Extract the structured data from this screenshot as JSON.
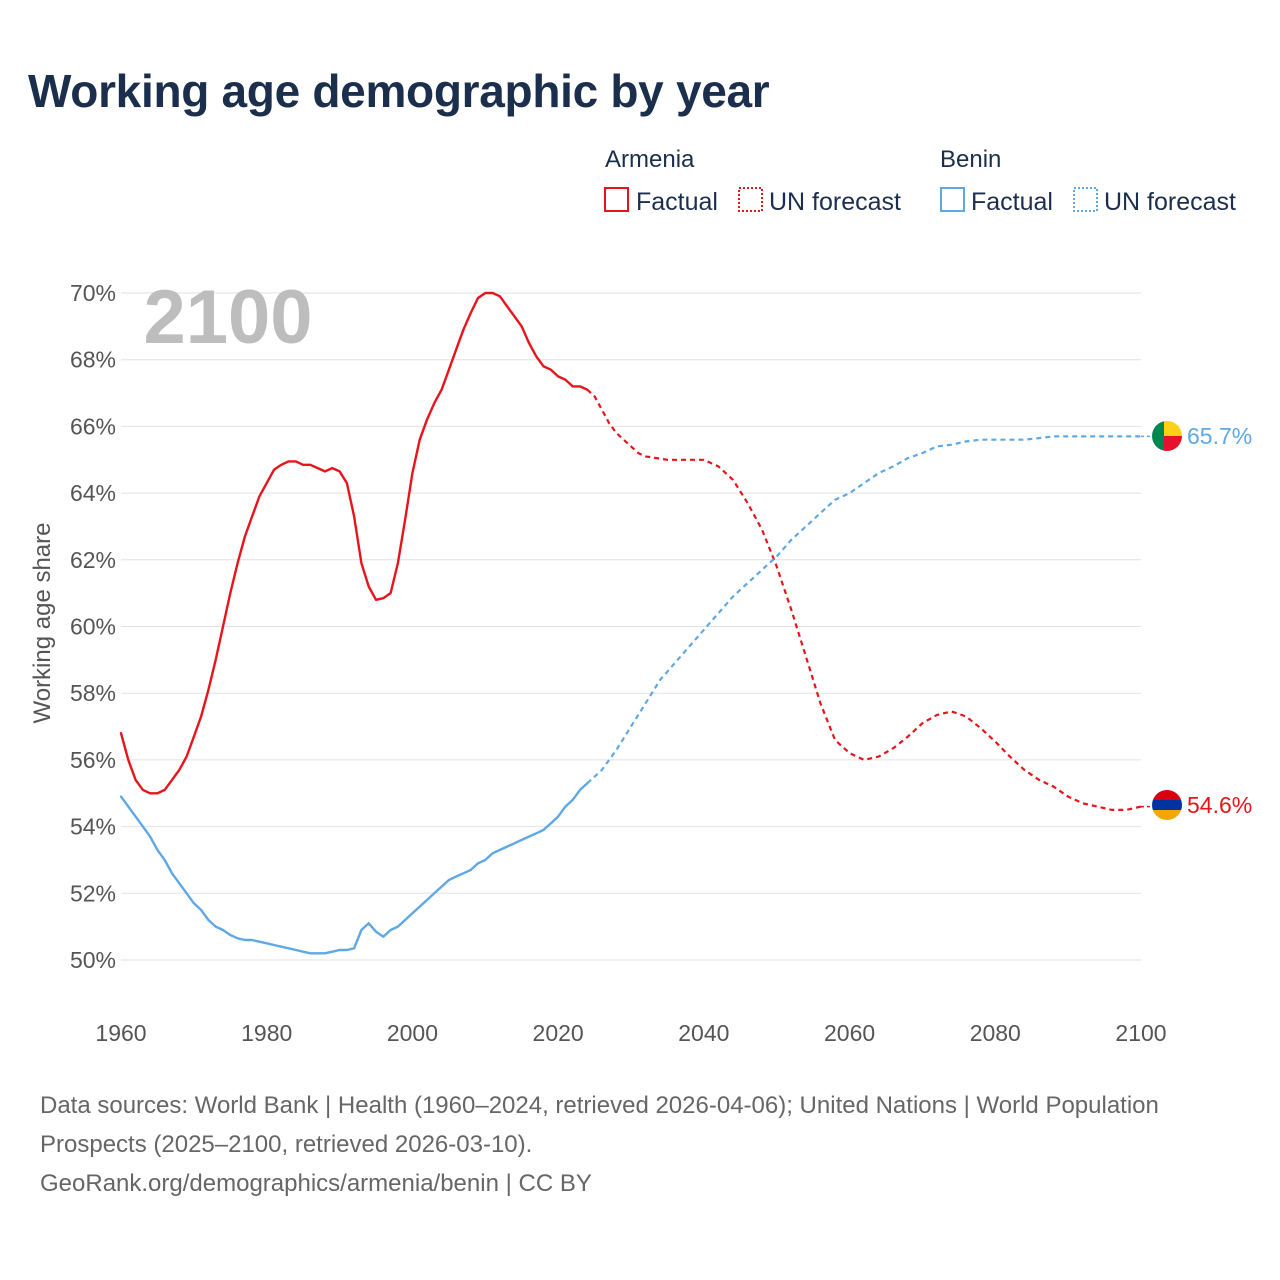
{
  "title": "Working age demographic by year",
  "legend": {
    "groups": [
      {
        "country": "Armenia",
        "color": "#e8141b",
        "factual_label": "Factual",
        "forecast_label": "UN forecast"
      },
      {
        "country": "Benin",
        "color": "#5fa8e6",
        "factual_label": "Factual",
        "forecast_label": "UN forecast"
      }
    ]
  },
  "current_year_label": "2100",
  "footer": {
    "sources": "Data sources: World Bank | Health (1960–2024, retrieved 2026-04-06); United Nations | World Population Prospects (2025–2100, retrieved 2026-03-10).",
    "credit": "GeoRank.org/demographics/armenia/benin | CC BY"
  },
  "chart_data": {
    "type": "line",
    "title": "Working age demographic by year",
    "xlabel": "",
    "ylabel": "Working age share",
    "xlim": [
      1960,
      2100
    ],
    "ylim": [
      49,
      71
    ],
    "x_ticks": [
      1960,
      1980,
      2000,
      2020,
      2040,
      2060,
      2080,
      2100
    ],
    "y_ticks": [
      50,
      52,
      54,
      56,
      58,
      60,
      62,
      64,
      66,
      68,
      70
    ],
    "y_tick_labels": [
      "50%",
      "52%",
      "54%",
      "56%",
      "58%",
      "60%",
      "62%",
      "64%",
      "66%",
      "68%",
      "70%"
    ],
    "grid": true,
    "series": [
      {
        "name": "Armenia",
        "color": "#e8141b",
        "end_label": "54.6%",
        "factual": [
          [
            1960,
            56.8
          ],
          [
            1961,
            56.0
          ],
          [
            1962,
            55.4
          ],
          [
            1963,
            55.1
          ],
          [
            1964,
            55.0
          ],
          [
            1965,
            55.0
          ],
          [
            1966,
            55.1
          ],
          [
            1967,
            55.4
          ],
          [
            1968,
            55.7
          ],
          [
            1969,
            56.1
          ],
          [
            1970,
            56.7
          ],
          [
            1971,
            57.3
          ],
          [
            1972,
            58.1
          ],
          [
            1973,
            59.0
          ],
          [
            1974,
            60.0
          ],
          [
            1975,
            61.0
          ],
          [
            1976,
            61.9
          ],
          [
            1977,
            62.7
          ],
          [
            1978,
            63.3
          ],
          [
            1979,
            63.9
          ],
          [
            1980,
            64.3
          ],
          [
            1981,
            64.7
          ],
          [
            1982,
            64.85
          ],
          [
            1983,
            64.95
          ],
          [
            1984,
            64.95
          ],
          [
            1985,
            64.85
          ],
          [
            1986,
            64.85
          ],
          [
            1987,
            64.75
          ],
          [
            1988,
            64.65
          ],
          [
            1989,
            64.75
          ],
          [
            1990,
            64.65
          ],
          [
            1991,
            64.3
          ],
          [
            1992,
            63.3
          ],
          [
            1993,
            61.9
          ],
          [
            1994,
            61.2
          ],
          [
            1995,
            60.8
          ],
          [
            1996,
            60.85
          ],
          [
            1997,
            61.0
          ],
          [
            1998,
            61.9
          ],
          [
            1999,
            63.2
          ],
          [
            2000,
            64.6
          ],
          [
            2001,
            65.6
          ],
          [
            2002,
            66.2
          ],
          [
            2003,
            66.7
          ],
          [
            2004,
            67.1
          ],
          [
            2005,
            67.7
          ],
          [
            2006,
            68.3
          ],
          [
            2007,
            68.9
          ],
          [
            2008,
            69.4
          ],
          [
            2009,
            69.85
          ],
          [
            2010,
            70.0
          ],
          [
            2011,
            70.0
          ],
          [
            2012,
            69.9
          ],
          [
            2013,
            69.6
          ],
          [
            2014,
            69.3
          ],
          [
            2015,
            69.0
          ],
          [
            2016,
            68.5
          ],
          [
            2017,
            68.1
          ],
          [
            2018,
            67.8
          ],
          [
            2019,
            67.7
          ],
          [
            2020,
            67.5
          ],
          [
            2021,
            67.4
          ],
          [
            2022,
            67.2
          ],
          [
            2023,
            67.2
          ],
          [
            2024,
            67.1
          ]
        ],
        "forecast": [
          [
            2024,
            67.1
          ],
          [
            2025,
            66.9
          ],
          [
            2026,
            66.5
          ],
          [
            2027,
            66.1
          ],
          [
            2028,
            65.8
          ],
          [
            2029,
            65.6
          ],
          [
            2030,
            65.4
          ],
          [
            2031,
            65.2
          ],
          [
            2032,
            65.1
          ],
          [
            2035,
            65.0
          ],
          [
            2038,
            65.0
          ],
          [
            2040,
            65.0
          ],
          [
            2042,
            64.8
          ],
          [
            2044,
            64.4
          ],
          [
            2046,
            63.7
          ],
          [
            2048,
            62.9
          ],
          [
            2050,
            61.8
          ],
          [
            2052,
            60.5
          ],
          [
            2054,
            59.1
          ],
          [
            2056,
            57.7
          ],
          [
            2058,
            56.6
          ],
          [
            2060,
            56.2
          ],
          [
            2062,
            56.0
          ],
          [
            2064,
            56.1
          ],
          [
            2066,
            56.35
          ],
          [
            2068,
            56.7
          ],
          [
            2070,
            57.1
          ],
          [
            2072,
            57.35
          ],
          [
            2074,
            57.45
          ],
          [
            2076,
            57.3
          ],
          [
            2078,
            56.95
          ],
          [
            2080,
            56.55
          ],
          [
            2082,
            56.1
          ],
          [
            2084,
            55.7
          ],
          [
            2086,
            55.4
          ],
          [
            2088,
            55.2
          ],
          [
            2090,
            54.9
          ],
          [
            2092,
            54.7
          ],
          [
            2094,
            54.6
          ],
          [
            2096,
            54.5
          ],
          [
            2098,
            54.5
          ],
          [
            2100,
            54.6
          ]
        ]
      },
      {
        "name": "Benin",
        "color": "#5fa8e6",
        "end_label": "65.7%",
        "factual": [
          [
            1960,
            54.9
          ],
          [
            1961,
            54.6
          ],
          [
            1962,
            54.3
          ],
          [
            1963,
            54.0
          ],
          [
            1964,
            53.7
          ],
          [
            1965,
            53.3
          ],
          [
            1966,
            53.0
          ],
          [
            1967,
            52.6
          ],
          [
            1968,
            52.3
          ],
          [
            1969,
            52.0
          ],
          [
            1970,
            51.7
          ],
          [
            1971,
            51.5
          ],
          [
            1972,
            51.2
          ],
          [
            1973,
            51.0
          ],
          [
            1974,
            50.9
          ],
          [
            1975,
            50.75
          ],
          [
            1976,
            50.65
          ],
          [
            1977,
            50.6
          ],
          [
            1978,
            50.6
          ],
          [
            1979,
            50.55
          ],
          [
            1980,
            50.5
          ],
          [
            1981,
            50.45
          ],
          [
            1982,
            50.4
          ],
          [
            1983,
            50.35
          ],
          [
            1984,
            50.3
          ],
          [
            1985,
            50.25
          ],
          [
            1986,
            50.2
          ],
          [
            1987,
            50.2
          ],
          [
            1988,
            50.2
          ],
          [
            1989,
            50.25
          ],
          [
            1990,
            50.3
          ],
          [
            1991,
            50.3
          ],
          [
            1992,
            50.35
          ],
          [
            1993,
            50.9
          ],
          [
            1994,
            51.1
          ],
          [
            1995,
            50.85
          ],
          [
            1996,
            50.7
          ],
          [
            1997,
            50.9
          ],
          [
            1998,
            51.0
          ],
          [
            1999,
            51.2
          ],
          [
            2000,
            51.4
          ],
          [
            2001,
            51.6
          ],
          [
            2002,
            51.8
          ],
          [
            2003,
            52.0
          ],
          [
            2004,
            52.2
          ],
          [
            2005,
            52.4
          ],
          [
            2006,
            52.5
          ],
          [
            2007,
            52.6
          ],
          [
            2008,
            52.7
          ],
          [
            2009,
            52.9
          ],
          [
            2010,
            53.0
          ],
          [
            2011,
            53.2
          ],
          [
            2012,
            53.3
          ],
          [
            2013,
            53.4
          ],
          [
            2014,
            53.5
          ],
          [
            2015,
            53.6
          ],
          [
            2016,
            53.7
          ],
          [
            2017,
            53.8
          ],
          [
            2018,
            53.9
          ],
          [
            2019,
            54.1
          ],
          [
            2020,
            54.3
          ],
          [
            2021,
            54.6
          ],
          [
            2022,
            54.8
          ],
          [
            2023,
            55.1
          ],
          [
            2024,
            55.3
          ]
        ],
        "forecast": [
          [
            2024,
            55.3
          ],
          [
            2026,
            55.7
          ],
          [
            2028,
            56.3
          ],
          [
            2030,
            57.0
          ],
          [
            2032,
            57.7
          ],
          [
            2034,
            58.4
          ],
          [
            2036,
            58.9
          ],
          [
            2038,
            59.4
          ],
          [
            2040,
            59.9
          ],
          [
            2042,
            60.4
          ],
          [
            2044,
            60.9
          ],
          [
            2046,
            61.3
          ],
          [
            2048,
            61.7
          ],
          [
            2050,
            62.1
          ],
          [
            2052,
            62.6
          ],
          [
            2054,
            63.0
          ],
          [
            2056,
            63.4
          ],
          [
            2058,
            63.8
          ],
          [
            2060,
            64.0
          ],
          [
            2062,
            64.3
          ],
          [
            2064,
            64.6
          ],
          [
            2066,
            64.8
          ],
          [
            2068,
            65.05
          ],
          [
            2070,
            65.2
          ],
          [
            2072,
            65.4
          ],
          [
            2074,
            65.45
          ],
          [
            2076,
            65.55
          ],
          [
            2078,
            65.6
          ],
          [
            2080,
            65.6
          ],
          [
            2082,
            65.6
          ],
          [
            2084,
            65.6
          ],
          [
            2086,
            65.65
          ],
          [
            2088,
            65.7
          ],
          [
            2090,
            65.7
          ],
          [
            2092,
            65.7
          ],
          [
            2094,
            65.7
          ],
          [
            2096,
            65.7
          ],
          [
            2098,
            65.7
          ],
          [
            2100,
            65.7
          ]
        ]
      }
    ]
  }
}
